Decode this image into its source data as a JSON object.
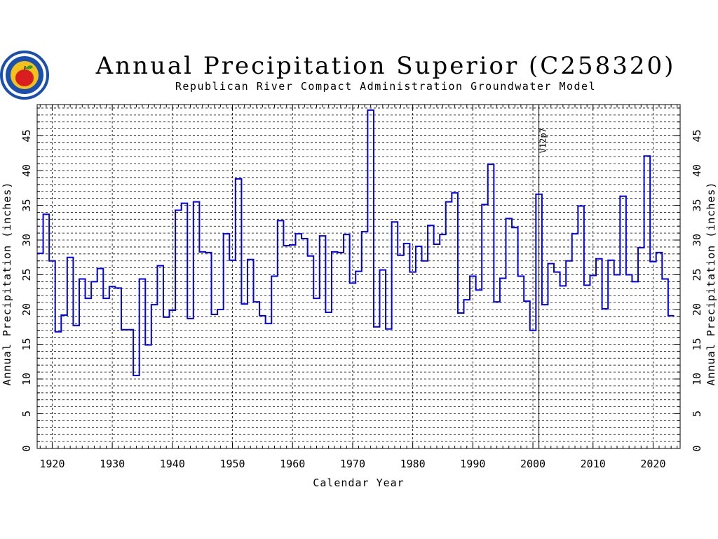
{
  "header": {
    "title": "Annual Precipitation Superior (C258320)",
    "subtitle": "Republican River Compact Administration Groundwater Model"
  },
  "logo": {
    "icon": "apple-seal-icon",
    "colors": {
      "ring": "#1a4fb0",
      "inner": "#f2c21a",
      "apple": "#d81e1e",
      "leaf": "#2e9c2e"
    }
  },
  "colors": {
    "series": "#0000ee",
    "grid": "#000000"
  },
  "chart_data": {
    "type": "line",
    "step": true,
    "title": "Annual Precipitation Superior (C258320)",
    "subtitle": "Republican River Compact Administration Groundwater Model",
    "xlabel": "Calendar Year",
    "ylabel": "Annual Precipitation (inches)",
    "y2label": "Annual Precipitation (inches)",
    "xlim": [
      1917.5,
      2024.5
    ],
    "ylim": [
      0,
      49.5
    ],
    "xticks": [
      1920,
      1930,
      1940,
      1950,
      1960,
      1970,
      1980,
      1990,
      2000,
      2010,
      2020
    ],
    "yticks": [
      0,
      5,
      10,
      15,
      20,
      25,
      30,
      35,
      40,
      45
    ],
    "grid": true,
    "vline": {
      "x": 2001,
      "label": "V12p7"
    },
    "series": [
      {
        "x": [
          1918,
          1919,
          1920,
          1921,
          1922,
          1923,
          1924,
          1925,
          1926,
          1927,
          1928,
          1929,
          1930,
          1931,
          1932,
          1933,
          1934,
          1935,
          1936,
          1937,
          1938,
          1939,
          1940,
          1941,
          1942,
          1943,
          1944,
          1945,
          1946,
          1947,
          1948,
          1949,
          1950,
          1951,
          1952,
          1953,
          1954,
          1955,
          1956,
          1957,
          1958,
          1959,
          1960,
          1961,
          1962,
          1963,
          1964,
          1965,
          1966,
          1967,
          1968,
          1969,
          1970,
          1971,
          1972,
          1973,
          1974,
          1975,
          1976,
          1977,
          1978,
          1979,
          1980,
          1981,
          1982,
          1983,
          1984,
          1985,
          1986,
          1987,
          1988,
          1989,
          1990,
          1991,
          1992,
          1993,
          1994,
          1995,
          1996,
          1997,
          1998,
          1999,
          2000,
          2001,
          2002,
          2003,
          2004,
          2005,
          2006,
          2007,
          2008,
          2009,
          2010,
          2011,
          2012,
          2013,
          2014,
          2015,
          2016,
          2017,
          2018,
          2019,
          2020,
          2021,
          2022,
          2023
        ],
        "values": [
          28.1,
          33.7,
          27.0,
          16.8,
          19.2,
          27.5,
          17.7,
          24.4,
          21.6,
          24.0,
          25.9,
          21.6,
          23.3,
          23.1,
          17.1,
          17.1,
          10.5,
          24.4,
          14.9,
          20.7,
          26.3,
          18.9,
          19.9,
          34.3,
          35.3,
          18.7,
          35.5,
          28.3,
          28.2,
          19.3,
          20.0,
          30.9,
          27.1,
          38.8,
          20.8,
          27.2,
          21.1,
          19.1,
          18.0,
          24.8,
          32.8,
          29.2,
          29.3,
          30.9,
          30.2,
          27.7,
          21.6,
          30.6,
          19.6,
          28.3,
          28.2,
          30.8,
          23.8,
          25.5,
          31.2,
          48.7,
          17.5,
          25.7,
          17.2,
          32.6,
          27.8,
          29.5,
          25.4,
          29.1,
          27.0,
          32.1,
          29.4,
          30.8,
          35.5,
          36.8,
          19.5,
          21.4,
          24.8,
          22.8,
          35.1,
          40.9,
          21.1,
          24.5,
          33.1,
          31.8,
          24.8,
          21.2,
          17.0,
          36.6,
          20.7,
          26.6,
          25.4,
          23.4,
          27.0,
          30.9,
          34.9,
          23.5,
          24.9,
          27.3,
          20.1,
          27.1,
          25.0,
          36.3,
          25.0,
          24.0,
          28.9,
          42.1,
          26.9,
          28.2,
          24.4,
          19.1
        ]
      }
    ]
  }
}
